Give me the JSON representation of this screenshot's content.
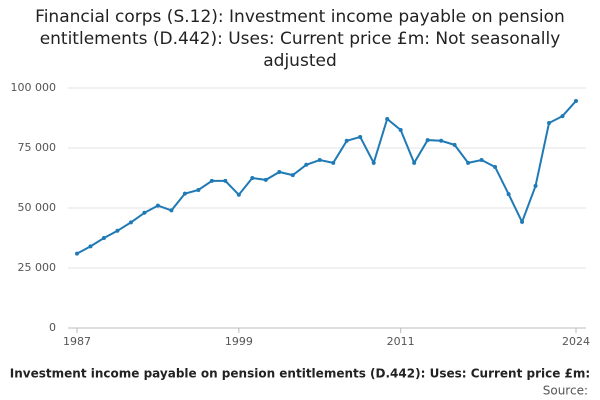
{
  "chart_data": {
    "type": "line",
    "title": "Financial corps (S.12): Investment income payable on pension entitlements (D.442): Uses: Current price £m: Not seasonally adjusted",
    "x": [
      1987,
      1988,
      1989,
      1990,
      1991,
      1992,
      1993,
      1994,
      1995,
      1996,
      1997,
      1998,
      1999,
      2000,
      2001,
      2002,
      2003,
      2004,
      2005,
      2006,
      2007,
      2008,
      2009,
      2010,
      2011,
      2012,
      2013,
      2014,
      2015,
      2016,
      2017,
      2018,
      2019,
      2020,
      2021,
      2022,
      2023,
      2024
    ],
    "series": [
      {
        "name": "Investment income payable on pension entitlements (D.442): Uses: Current price £m:",
        "color": "#1f7ab5",
        "values": [
          31000,
          34000,
          37500,
          40500,
          44000,
          48000,
          51000,
          49000,
          56000,
          57500,
          61300,
          61300,
          55500,
          62500,
          61700,
          65000,
          63700,
          68000,
          70000,
          68800,
          78000,
          79600,
          68800,
          87100,
          82500,
          68800,
          78300,
          78000,
          76300,
          68800,
          70000,
          67100,
          55800,
          44200,
          59200,
          85400,
          88300,
          94600
        ]
      }
    ],
    "xlim": [
      1987,
      2024
    ],
    "xticks": [
      1987,
      1999,
      2011,
      2024
    ],
    "ylim": [
      0,
      100000
    ],
    "yticks": [
      0,
      {
        "value": 25000,
        "label": "25 000"
      },
      {
        "value": 50000,
        "label": "50 000"
      },
      {
        "value": 75000,
        "label": "75 000"
      },
      {
        "value": 100000,
        "label": "100 000"
      }
    ],
    "grid": true,
    "source": "Source:"
  }
}
